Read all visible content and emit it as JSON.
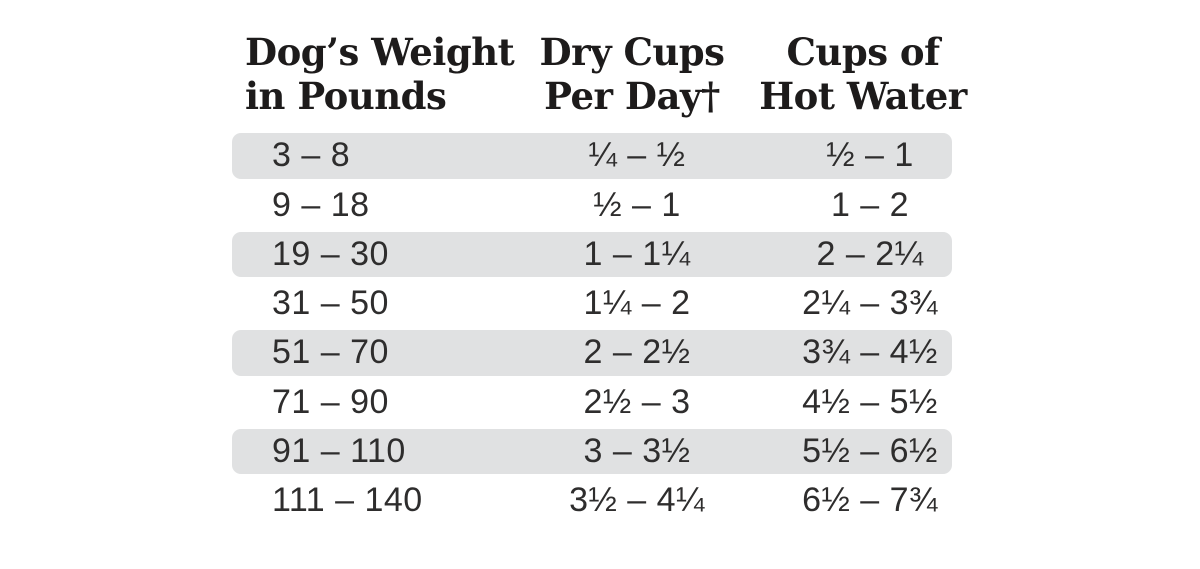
{
  "chart_data": {
    "type": "table",
    "title": "",
    "columns": [
      {
        "label": "Dog's Weight in Pounds",
        "line1": "Dog’s Weight",
        "line2": "in Pounds"
      },
      {
        "label": "Dry Cups Per Day†",
        "line1": "Dry Cups",
        "line2": "Per Day†"
      },
      {
        "label": "Cups of Hot Water",
        "line1": "Cups of",
        "line2": "Hot Water"
      }
    ],
    "rows": [
      [
        "3 – 8",
        "¼ – ½",
        "½ – 1"
      ],
      [
        "9 – 18",
        "½ – 1",
        "1 – 2"
      ],
      [
        "19 – 30",
        "1 – 1¼",
        "2 – 2¼"
      ],
      [
        "31 – 50",
        "1¼ – 2",
        "2¼ – 3¾"
      ],
      [
        "51 – 70",
        "2 – 2½",
        "3¾ – 4½"
      ],
      [
        "71 – 90",
        "2½ – 3",
        "4½ – 5½"
      ],
      [
        "91 – 110",
        "3 – 3½",
        "5½ – 6½"
      ],
      [
        "111 – 140",
        "3½ – 4¼",
        "6½ – 7¾"
      ]
    ],
    "layout_hints": {
      "shaded_rows": "odd rows (1st, 3rd, 5th, 7th) have gray rounded bands",
      "column_alignment": [
        "left",
        "center",
        "center"
      ]
    }
  },
  "colors": {
    "background": "#ffffff",
    "row_shade": "#e0e1e2",
    "header_text": "#1d1b1b",
    "body_text": "#2e2d2d"
  }
}
